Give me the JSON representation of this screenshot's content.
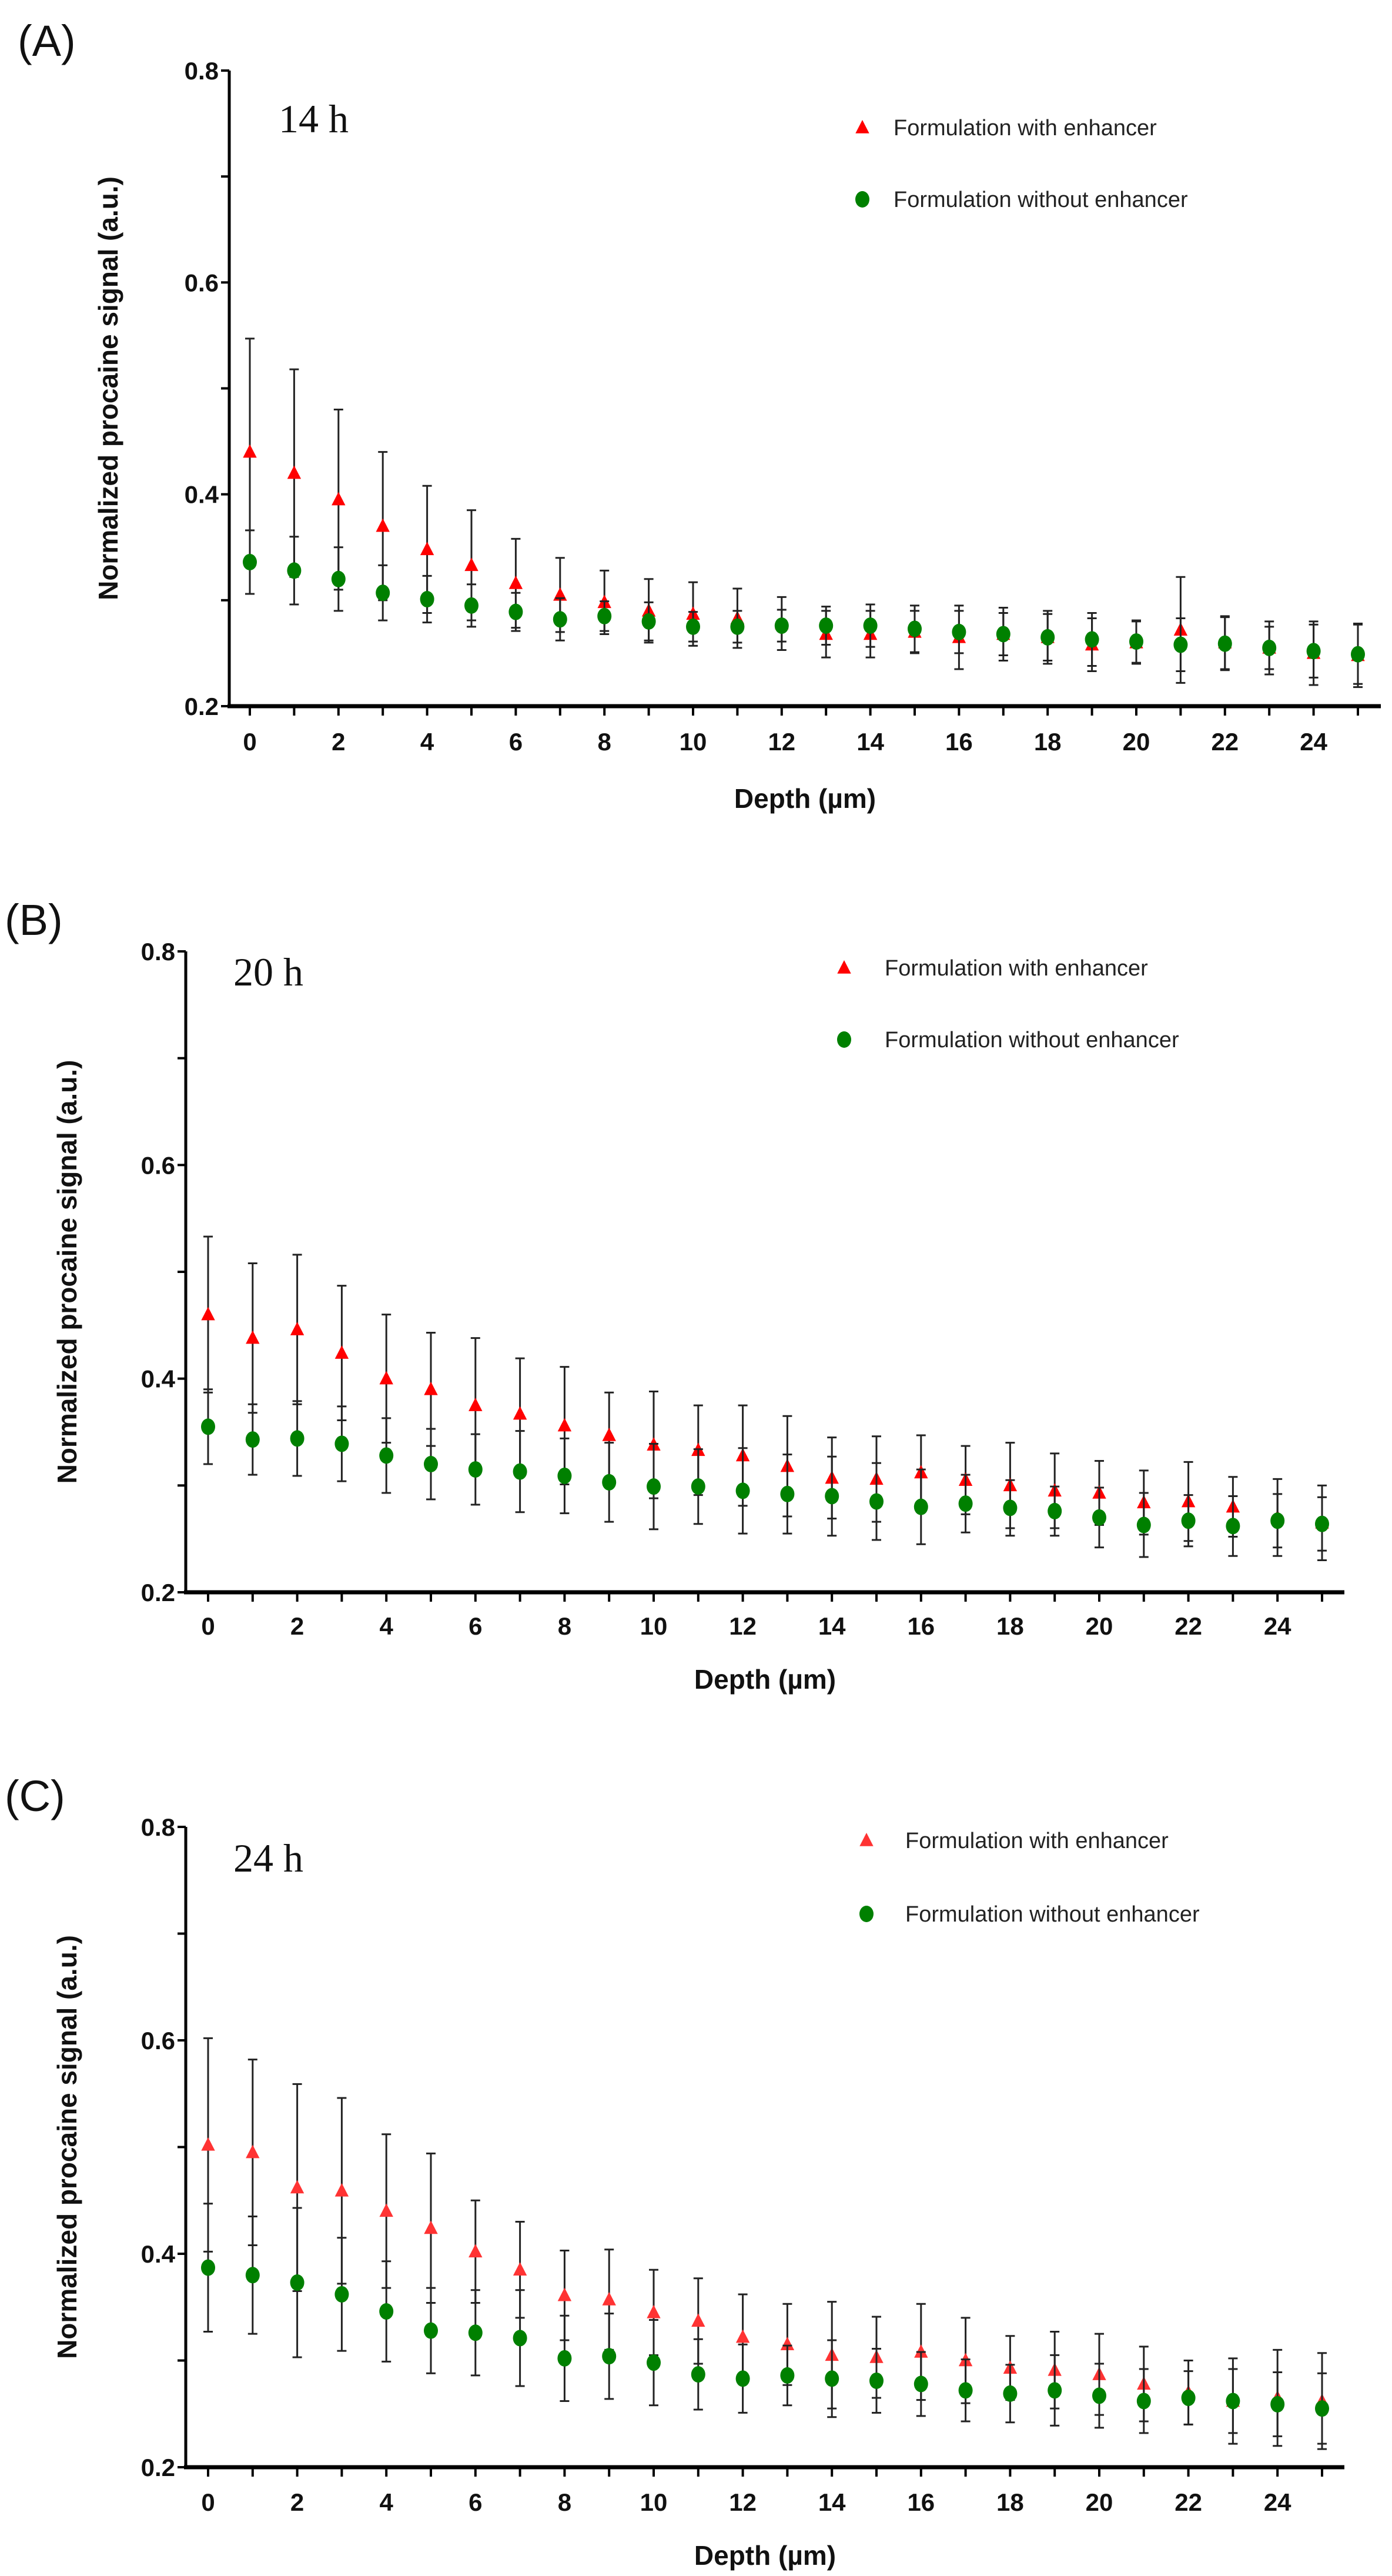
{
  "chart_data": [
    {
      "type": "scatter",
      "panel_label": "(A)",
      "title": "14 h",
      "xlabel": "Depth (µm)",
      "ylabel": "Normalized procaine signal (a.u.)",
      "xlim": [
        0,
        25
      ],
      "ylim": [
        0.2,
        0.8
      ],
      "xticks": [
        0,
        2,
        4,
        6,
        8,
        10,
        12,
        14,
        16,
        18,
        20,
        22,
        24
      ],
      "yticks": [
        "0.2",
        "0.4",
        "0.6",
        "0.8"
      ],
      "legend_position": "top-right",
      "x": [
        0,
        1,
        2,
        3,
        4,
        5,
        6,
        7,
        8,
        9,
        10,
        11,
        12,
        13,
        14,
        15,
        16,
        17,
        18,
        19,
        20,
        21,
        22,
        23,
        24,
        25
      ],
      "series": [
        {
          "name": "Formulation with enhancer",
          "marker": "triangle",
          "color": "#ff0000",
          "values": [
            0.44,
            0.42,
            0.395,
            0.37,
            0.348,
            0.333,
            0.316,
            0.305,
            0.298,
            0.29,
            0.287,
            0.283,
            0.278,
            0.268,
            0.268,
            0.27,
            0.265,
            0.268,
            0.265,
            0.258,
            0.26,
            0.272,
            0.26,
            0.255,
            0.25,
            0.248
          ],
          "errors": [
            0.107,
            0.098,
            0.085,
            0.07,
            0.06,
            0.052,
            0.042,
            0.035,
            0.03,
            0.03,
            0.03,
            0.028,
            0.025,
            0.022,
            0.022,
            0.02,
            0.03,
            0.025,
            0.025,
            0.025,
            0.02,
            0.05,
            0.025,
            0.02,
            0.03,
            0.03
          ]
        },
        {
          "name": "Formulation without enhancer",
          "marker": "circle",
          "color": "#008000",
          "values": [
            0.336,
            0.328,
            0.32,
            0.307,
            0.301,
            0.295,
            0.289,
            0.282,
            0.285,
            0.28,
            0.275,
            0.275,
            0.276,
            0.276,
            0.276,
            0.273,
            0.27,
            0.268,
            0.265,
            0.263,
            0.261,
            0.258,
            0.259,
            0.255,
            0.252,
            0.249
          ],
          "errors": [
            0.03,
            0.032,
            0.03,
            0.026,
            0.022,
            0.02,
            0.018,
            0.02,
            0.014,
            0.018,
            0.014,
            0.015,
            0.015,
            0.018,
            0.02,
            0.022,
            0.02,
            0.02,
            0.022,
            0.025,
            0.02,
            0.025,
            0.025,
            0.025,
            0.025,
            0.028
          ]
        }
      ]
    },
    {
      "type": "scatter",
      "panel_label": "(B)",
      "title": "20 h",
      "xlabel": "Depth (µm)",
      "ylabel": "Normalized procaine signal (a.u.)",
      "xlim": [
        0,
        25
      ],
      "ylim": [
        0.2,
        0.8
      ],
      "xticks": [
        0,
        2,
        4,
        6,
        8,
        10,
        12,
        14,
        16,
        18,
        20,
        22,
        24
      ],
      "yticks": [
        "0.2",
        "0.4",
        "0.6",
        "0.8"
      ],
      "legend_position": "top-right",
      "x": [
        0,
        1,
        2,
        3,
        4,
        5,
        6,
        7,
        8,
        9,
        10,
        11,
        12,
        13,
        14,
        15,
        16,
        17,
        18,
        19,
        20,
        21,
        22,
        23,
        24,
        25
      ],
      "series": [
        {
          "name": "Formulation with enhancer",
          "marker": "triangle",
          "color": "#ff0000",
          "values": [
            0.46,
            0.438,
            0.446,
            0.424,
            0.4,
            0.39,
            0.375,
            0.367,
            0.356,
            0.347,
            0.338,
            0.333,
            0.328,
            0.318,
            0.307,
            0.306,
            0.312,
            0.305,
            0.3,
            0.295,
            0.293,
            0.284,
            0.285,
            0.28,
            0.27,
            0.265
          ],
          "errors": [
            0.073,
            0.07,
            0.07,
            0.063,
            0.06,
            0.053,
            0.063,
            0.052,
            0.055,
            0.04,
            0.05,
            0.042,
            0.047,
            0.047,
            0.038,
            0.04,
            0.035,
            0.032,
            0.04,
            0.035,
            0.03,
            0.03,
            0.037,
            0.028,
            0.036,
            0.035
          ]
        },
        {
          "name": "Formulation without enhancer",
          "marker": "circle",
          "color": "#008000",
          "values": [
            0.355,
            0.343,
            0.344,
            0.339,
            0.328,
            0.32,
            0.315,
            0.313,
            0.309,
            0.303,
            0.299,
            0.299,
            0.295,
            0.292,
            0.29,
            0.285,
            0.28,
            0.283,
            0.279,
            0.276,
            0.27,
            0.263,
            0.267,
            0.262,
            0.267,
            0.264
          ],
          "errors": [
            0.035,
            0.033,
            0.035,
            0.035,
            0.035,
            0.033,
            0.033,
            0.038,
            0.035,
            0.037,
            0.04,
            0.035,
            0.04,
            0.037,
            0.037,
            0.036,
            0.035,
            0.027,
            0.026,
            0.023,
            0.028,
            0.03,
            0.024,
            0.028,
            0.025,
            0.025
          ]
        }
      ]
    },
    {
      "type": "scatter",
      "panel_label": "(C)",
      "title": "24 h",
      "xlabel": "Depth (µm)",
      "ylabel": "Normalized procaine signal (a.u.)",
      "xlim": [
        0,
        25
      ],
      "ylim": [
        0.2,
        0.8
      ],
      "xticks": [
        0,
        2,
        4,
        6,
        8,
        10,
        12,
        14,
        16,
        18,
        20,
        22,
        24
      ],
      "yticks": [
        "0.2",
        "0.4",
        "0.6",
        "0.8"
      ],
      "legend_position": "top-right",
      "x": [
        0,
        1,
        2,
        3,
        4,
        5,
        6,
        7,
        8,
        9,
        10,
        11,
        12,
        13,
        14,
        15,
        16,
        17,
        18,
        19,
        20,
        21,
        22,
        23,
        24,
        25
      ],
      "series": [
        {
          "name": "Formulation with enhancer",
          "marker": "triangle",
          "color": "#ff3333",
          "values": [
            0.502,
            0.495,
            0.462,
            0.459,
            0.44,
            0.424,
            0.402,
            0.385,
            0.361,
            0.357,
            0.345,
            0.337,
            0.322,
            0.315,
            0.305,
            0.303,
            0.308,
            0.3,
            0.293,
            0.291,
            0.287,
            0.278,
            0.27,
            0.262,
            0.265,
            0.262
          ],
          "errors": [
            0.1,
            0.087,
            0.097,
            0.087,
            0.072,
            0.07,
            0.048,
            0.045,
            0.042,
            0.047,
            0.04,
            0.04,
            0.04,
            0.038,
            0.05,
            0.038,
            0.045,
            0.04,
            0.03,
            0.036,
            0.038,
            0.035,
            0.03,
            0.04,
            0.045,
            0.045
          ]
        },
        {
          "name": "Formulation without enhancer",
          "marker": "circle",
          "color": "#008000",
          "values": [
            0.387,
            0.38,
            0.373,
            0.362,
            0.346,
            0.328,
            0.326,
            0.321,
            0.302,
            0.304,
            0.298,
            0.287,
            0.283,
            0.286,
            0.283,
            0.281,
            0.278,
            0.272,
            0.269,
            0.272,
            0.267,
            0.262,
            0.265,
            0.262,
            0.259,
            0.255
          ],
          "errors": [
            0.06,
            0.055,
            0.07,
            0.053,
            0.047,
            0.04,
            0.04,
            0.045,
            0.04,
            0.04,
            0.04,
            0.033,
            0.032,
            0.028,
            0.036,
            0.03,
            0.03,
            0.029,
            0.027,
            0.033,
            0.03,
            0.03,
            0.025,
            0.03,
            0.03,
            0.033
          ]
        }
      ]
    }
  ]
}
